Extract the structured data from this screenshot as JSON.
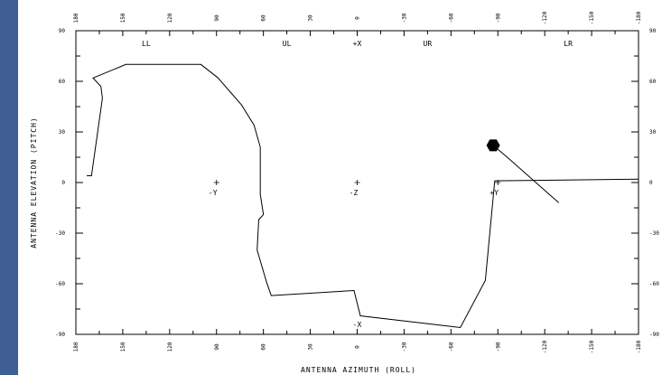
{
  "chart_data": {
    "type": "line",
    "title": "",
    "xlabel": "ANTENNA AZIMUTH (ROLL)",
    "ylabel": "ANTENNA ELEVATION (PITCH)",
    "xlim": [
      180,
      -180
    ],
    "ylim": [
      -90,
      90
    ],
    "x_ticks": [
      180,
      150,
      120,
      90,
      60,
      30,
      0,
      -30,
      -60,
      -90,
      -120,
      -150,
      -180
    ],
    "x_tick_labels": [
      "180",
      "150",
      "120",
      "90",
      "60",
      "30",
      "0",
      "-30",
      "-60",
      "-90",
      "-120",
      "-150",
      "-180"
    ],
    "y_ticks": [
      90,
      60,
      30,
      0,
      -30,
      -60,
      -90
    ],
    "y_tick_labels": [
      "90",
      "60",
      "30",
      "0",
      "-30",
      "-60",
      "-90"
    ],
    "quadrant_labels": [
      {
        "text": "LL",
        "x": 135,
        "y": 84
      },
      {
        "text": "UL",
        "x": 45,
        "y": 84
      },
      {
        "text": "+X",
        "x": 0,
        "y": 84
      },
      {
        "text": "UR",
        "x": -45,
        "y": 84
      },
      {
        "text": "LR",
        "x": -135,
        "y": 84
      }
    ],
    "body_axes": [
      {
        "label": "-Y",
        "x": 90,
        "y": 0
      },
      {
        "label": "-Z",
        "x": 0,
        "y": 0
      },
      {
        "label": "+Y",
        "x": -90,
        "y": 0
      },
      {
        "label": "-X",
        "x": 0,
        "y": -90
      }
    ],
    "series": [
      {
        "values": [
          [
            173,
            4
          ],
          [
            170,
            4
          ],
          [
            163,
            50
          ],
          [
            164,
            57
          ],
          [
            169,
            62
          ],
          [
            148,
            70
          ],
          [
            100,
            70
          ],
          [
            89,
            62
          ],
          [
            74,
            46
          ],
          [
            66,
            34
          ],
          [
            62,
            21
          ],
          [
            62,
            -7
          ],
          [
            60,
            -19
          ],
          [
            63,
            -22
          ],
          [
            64,
            -40
          ],
          [
            58,
            -59
          ],
          [
            55,
            -67
          ],
          [
            2,
            -64
          ],
          [
            -2,
            -79
          ],
          [
            -66,
            -86
          ],
          [
            -82,
            -58
          ],
          [
            -88,
            1
          ],
          [
            -180,
            2
          ]
        ]
      },
      {
        "values": [
          [
            -87,
            22
          ],
          [
            -96,
            15
          ],
          [
            -129,
            -12
          ]
        ]
      }
    ],
    "marker": {
      "shape": "hexagon",
      "x": -87,
      "y": 22
    }
  }
}
